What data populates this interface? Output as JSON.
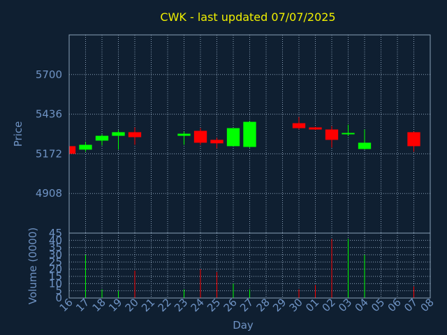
{
  "chart_data": {
    "type": "candlestick",
    "title": "CWK - last updated 07/07/2025",
    "x_label": "Day",
    "y_label": "Price",
    "categories": [
      "16",
      "17",
      "18",
      "19",
      "20",
      "21",
      "22",
      "23",
      "24",
      "25",
      "26",
      "27",
      "28",
      "29",
      "30",
      "01",
      "02",
      "03",
      "04",
      "05",
      "06",
      "07",
      "08"
    ],
    "open": [
      5223,
      5200,
      5260,
      5292,
      5316,
      null,
      null,
      5292,
      5325,
      5265,
      5223,
      5218,
      null,
      null,
      5376,
      5348,
      5334,
      5302,
      5204,
      null,
      null,
      5316,
      null
    ],
    "high": [
      5225,
      5251,
      5302,
      5330,
      5348,
      null,
      null,
      5320,
      5343,
      5279,
      5343,
      5390,
      null,
      null,
      5417,
      5352,
      5357,
      5367,
      5334,
      null,
      null,
      5320,
      null
    ],
    "low": [
      5170,
      5186,
      5228,
      5200,
      5232,
      null,
      null,
      5232,
      5232,
      5209,
      5223,
      5213,
      null,
      null,
      5334,
      5330,
      5214,
      5292,
      5200,
      null,
      null,
      5186,
      null
    ],
    "close": [
      5172,
      5232,
      5292,
      5316,
      5283,
      null,
      null,
      5306,
      5246,
      5242,
      5343,
      5385,
      null,
      null,
      5343,
      5334,
      5265,
      5311,
      5246,
      null,
      null,
      5223,
      null
    ],
    "up_color": "#00ff00",
    "down_color": "#ff0000",
    "ylim": [
      4644,
      5964
    ],
    "yticks": [
      4908,
      5172,
      5436,
      5700
    ],
    "grid": true,
    "volume": {
      "y_label": "Volume (0000)",
      "values": [
        null,
        30,
        6,
        5,
        19,
        null,
        null,
        6,
        20,
        18,
        10,
        6,
        null,
        null,
        6,
        9,
        41,
        41,
        30,
        null,
        null,
        8,
        null
      ],
      "ylim": [
        0,
        45
      ],
      "yticks": [
        0,
        5,
        10,
        15,
        20,
        25,
        30,
        35,
        40,
        45
      ]
    }
  }
}
